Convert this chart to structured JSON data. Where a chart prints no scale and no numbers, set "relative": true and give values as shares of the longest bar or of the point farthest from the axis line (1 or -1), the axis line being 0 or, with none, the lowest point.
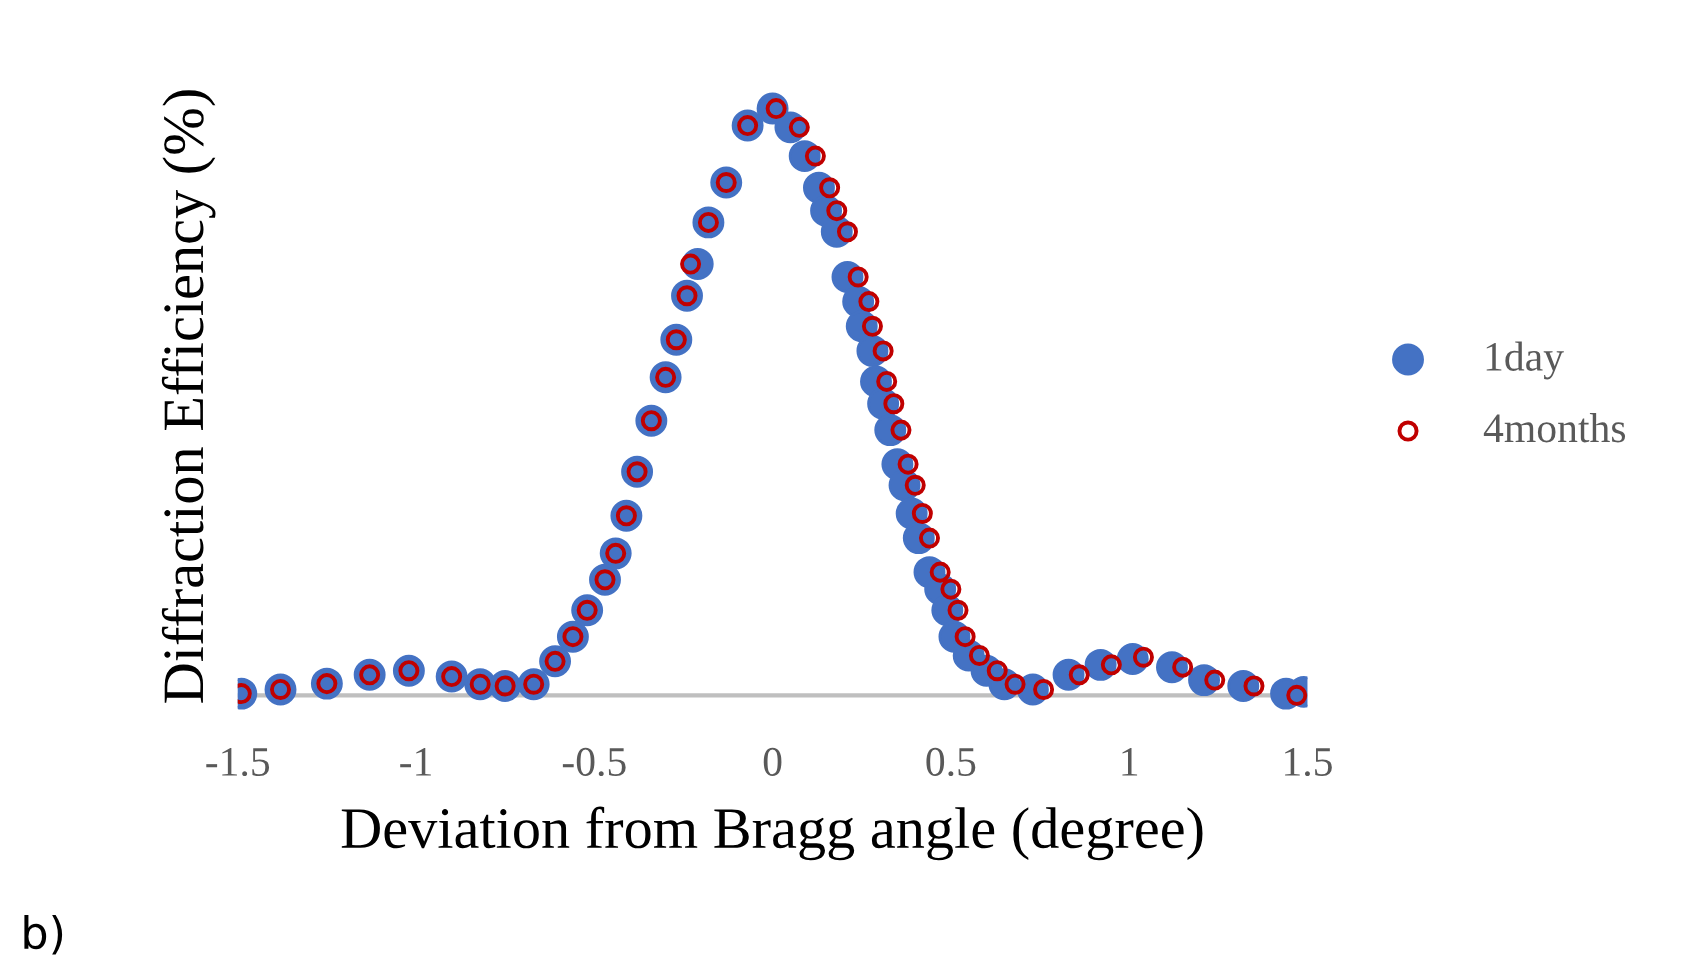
{
  "chart_data": {
    "type": "scatter",
    "relative": true,
    "xlabel": "Deviation from Bragg angle (degree)",
    "ylabel": "Diffraction Efficiency (%)",
    "xlim": [
      -1.5,
      1.5
    ],
    "xticks": [
      -1.5,
      -1,
      -0.5,
      0,
      0.5,
      1,
      1.5
    ],
    "grid": false,
    "legend": "right",
    "tick_labels": "x",
    "annotations": [
      "b)"
    ],
    "series": [
      {
        "name": "1day",
        "color": "#4472c4",
        "marker": "circle",
        "x": [
          -1.49,
          -1.38,
          -1.25,
          -1.13,
          -1.02,
          -0.9,
          -0.82,
          -0.75,
          -0.67,
          -0.61,
          -0.56,
          -0.52,
          -0.47,
          -0.44,
          -0.41,
          -0.38,
          -0.34,
          -0.3,
          -0.27,
          -0.24,
          -0.21,
          -0.18,
          -0.13,
          -0.07,
          0.0,
          0.05,
          0.09,
          0.13,
          0.15,
          0.18,
          0.21,
          0.24,
          0.25,
          0.28,
          0.29,
          0.31,
          0.33,
          0.35,
          0.37,
          0.39,
          0.41,
          0.44,
          0.47,
          0.49,
          0.51,
          0.55,
          0.6,
          0.65,
          0.73,
          0.83,
          0.92,
          1.01,
          1.12,
          1.21,
          1.32,
          1.44,
          1.49
        ],
        "values": [
          0.003,
          0.01,
          0.02,
          0.035,
          0.042,
          0.032,
          0.019,
          0.016,
          0.019,
          0.058,
          0.1,
          0.145,
          0.197,
          0.242,
          0.306,
          0.381,
          0.468,
          0.542,
          0.606,
          0.681,
          0.735,
          0.806,
          0.874,
          0.971,
          1.0,
          0.968,
          0.919,
          0.865,
          0.826,
          0.79,
          0.713,
          0.671,
          0.629,
          0.587,
          0.535,
          0.497,
          0.452,
          0.394,
          0.358,
          0.31,
          0.268,
          0.21,
          0.181,
          0.145,
          0.1,
          0.068,
          0.042,
          0.019,
          0.01,
          0.035,
          0.052,
          0.062,
          0.048,
          0.026,
          0.016,
          0.003,
          0.006
        ]
      },
      {
        "name": "4months",
        "color": "#c00000",
        "marker": "circle",
        "x": [
          -1.49,
          -1.38,
          -1.25,
          -1.13,
          -1.02,
          -0.9,
          -0.82,
          -0.75,
          -0.67,
          -0.61,
          -0.56,
          -0.52,
          -0.47,
          -0.44,
          -0.41,
          -0.38,
          -0.34,
          -0.3,
          -0.27,
          -0.24,
          -0.23,
          -0.18,
          -0.13,
          -0.07,
          0.01,
          0.075,
          0.12,
          0.16,
          0.18,
          0.21,
          0.24,
          0.27,
          0.28,
          0.31,
          0.32,
          0.34,
          0.36,
          0.38,
          0.4,
          0.42,
          0.44,
          0.47,
          0.5,
          0.52,
          0.54,
          0.58,
          0.63,
          0.68,
          0.76,
          0.86,
          0.95,
          1.04,
          1.15,
          1.24,
          1.35,
          1.47
        ],
        "values": [
          0.003,
          0.01,
          0.02,
          0.035,
          0.042,
          0.032,
          0.019,
          0.016,
          0.019,
          0.058,
          0.1,
          0.145,
          0.197,
          0.242,
          0.306,
          0.381,
          0.468,
          0.542,
          0.606,
          0.681,
          0.735,
          0.806,
          0.874,
          0.971,
          1.0,
          0.968,
          0.919,
          0.865,
          0.826,
          0.79,
          0.713,
          0.671,
          0.629,
          0.587,
          0.535,
          0.497,
          0.452,
          0.394,
          0.358,
          0.31,
          0.268,
          0.21,
          0.181,
          0.145,
          0.1,
          0.068,
          0.042,
          0.019,
          0.01,
          0.035,
          0.052,
          0.065,
          0.048,
          0.026,
          0.016,
          0.0
        ]
      }
    ]
  }
}
